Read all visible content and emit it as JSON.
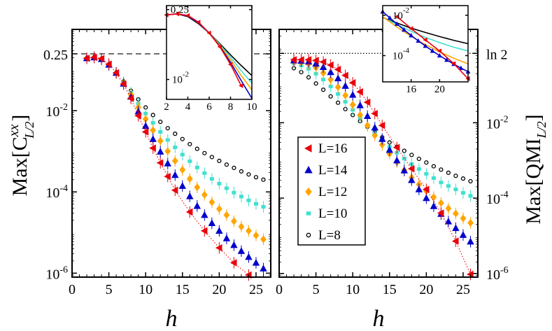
{
  "figure": {
    "description_free": true
  },
  "chart_data": [
    {
      "id": "left-panel",
      "type": "scatter",
      "title": "",
      "xlabel": "h",
      "ylabel_main": "Max[C",
      "ylabel_sup": "xx",
      "ylabel_sub": "L/2",
      "ylabel_close": "]",
      "yscale": "log",
      "xlim": [
        0,
        27
      ],
      "ylim": [
        8e-07,
        1.0
      ],
      "xticks": [
        0,
        5,
        10,
        15,
        20,
        25
      ],
      "xtick_labels": [
        "0",
        "5",
        "10",
        "15",
        "20",
        "25"
      ],
      "yticks": [
        1e-06,
        0.0001,
        0.01,
        0.25
      ],
      "ytick_labels": [
        {
          "base": "10",
          "exp": "-6"
        },
        {
          "base": "10",
          "exp": "-4"
        },
        {
          "base": "10",
          "exp": "-2"
        },
        {
          "base": "0.25",
          "exp": ""
        }
      ],
      "reference_line": {
        "y": 0.25,
        "style": "dashed"
      },
      "series": [
        {
          "name": "L=8",
          "color": "#000000",
          "marker": "circle",
          "x": [
            2,
            3,
            4,
            5,
            6,
            7,
            8,
            9,
            10,
            11,
            12,
            13,
            14,
            15,
            16,
            17,
            18,
            19,
            20,
            21,
            22,
            23,
            24,
            25,
            26
          ],
          "y": [
            0.195,
            0.205,
            0.18,
            0.13,
            0.085,
            0.052,
            0.031,
            0.019,
            0.012,
            0.0078,
            0.0053,
            0.0037,
            0.0027,
            0.002,
            0.0015,
            0.00115,
            0.0009,
            0.00072,
            0.00058,
            0.00047,
            0.00039,
            0.00032,
            0.00027,
            0.00023,
            0.0002
          ]
        },
        {
          "name": "L=10",
          "color": "#40e0d0",
          "marker": "square",
          "x": [
            2,
            3,
            4,
            5,
            6,
            7,
            8,
            9,
            10,
            11,
            12,
            13,
            14,
            15,
            16,
            17,
            18,
            19,
            20,
            21,
            22,
            23,
            24,
            25,
            26
          ],
          "y": [
            0.195,
            0.205,
            0.185,
            0.135,
            0.085,
            0.05,
            0.028,
            0.015,
            0.0085,
            0.005,
            0.003,
            0.0019,
            0.00125,
            0.00083,
            0.00057,
            0.0004,
            0.00029,
            0.00021,
            0.00016,
            0.000123,
            9.6e-05,
            7.7e-05,
            6.2e-05,
            5.1e-05,
            4.3e-05
          ]
        },
        {
          "name": "L=12",
          "color": "#ffa500",
          "marker": "diamond",
          "x": [
            2,
            3,
            4,
            5,
            6,
            7,
            8,
            9,
            10,
            11,
            12,
            13,
            14,
            15,
            16,
            17,
            18,
            19,
            20,
            21,
            22,
            23,
            24,
            25,
            26
          ],
          "y": [
            0.195,
            0.205,
            0.185,
            0.135,
            0.085,
            0.048,
            0.025,
            0.012,
            0.0062,
            0.0033,
            0.0018,
            0.001,
            0.00058,
            0.00035,
            0.00021,
            0.00013,
            8.5e-05,
            5.6e-05,
            3.8e-05,
            2.7e-05,
            1.9e-05,
            1.4e-05,
            1.1e-05,
            8.5e-06,
            6.8e-06
          ]
        },
        {
          "name": "L=14",
          "color": "#0000cd",
          "marker": "triangle-up",
          "x": [
            2,
            3,
            4,
            5,
            6,
            7,
            8,
            9,
            10,
            11,
            12,
            13,
            14,
            15,
            16,
            17,
            18,
            19,
            20,
            21,
            22,
            23,
            24,
            25,
            26
          ],
          "y": [
            0.195,
            0.205,
            0.185,
            0.135,
            0.085,
            0.046,
            0.022,
            0.0095,
            0.0042,
            0.002,
            0.00098,
            0.0005,
            0.00026,
            0.00014,
            7.8e-05,
            4.5e-05,
            2.7e-05,
            1.7e-05,
            1.1e-05,
            7.2e-06,
            4.9e-06,
            3.5e-06,
            2.5e-06,
            1.8e-06,
            1.3e-06
          ]
        },
        {
          "name": "L=16",
          "color": "#e8000b",
          "marker": "triangle-left",
          "fit_line": "dotted",
          "x": [
            2,
            3,
            4,
            5,
            6,
            7,
            8,
            9,
            10,
            11,
            12,
            13,
            14,
            16,
            18,
            20,
            22,
            24
          ],
          "y": [
            0.195,
            0.205,
            0.19,
            0.14,
            0.085,
            0.045,
            0.02,
            0.0075,
            0.003,
            0.0012,
            0.00052,
            0.00024,
            0.00011,
            3.2e-05,
            1.1e-05,
            4.2e-06,
            1.8e-06,
            9e-07
          ]
        }
      ]
    },
    {
      "id": "left-inset",
      "type": "line",
      "title": "",
      "yscale": "log",
      "xlim": [
        2,
        10
      ],
      "ylim": [
        0.004,
        0.3
      ],
      "xticks": [
        2,
        4,
        6,
        8,
        10
      ],
      "xtick_labels": [
        "2",
        "4",
        "6",
        "8",
        "10"
      ],
      "yticks": [
        0.01,
        0.25
      ],
      "ytick_labels": [
        {
          "base": "10",
          "exp": "-2"
        },
        {
          "base": "0.25",
          "exp": ""
        }
      ],
      "series": [
        {
          "name": "L=8",
          "color": "#000000",
          "x": [
            2,
            3,
            4,
            5,
            6,
            7,
            8,
            9,
            10
          ],
          "y": [
            0.195,
            0.205,
            0.18,
            0.13,
            0.085,
            0.052,
            0.031,
            0.019,
            0.012
          ]
        },
        {
          "name": "L=10",
          "color": "#40e0d0",
          "x": [
            2,
            3,
            4,
            5,
            6,
            7,
            8,
            9,
            10
          ],
          "y": [
            0.195,
            0.205,
            0.185,
            0.135,
            0.085,
            0.05,
            0.028,
            0.015,
            0.0085
          ]
        },
        {
          "name": "L=12",
          "color": "#ffa500",
          "x": [
            2,
            3,
            4,
            5,
            6,
            7,
            8,
            9,
            10
          ],
          "y": [
            0.195,
            0.205,
            0.185,
            0.135,
            0.085,
            0.048,
            0.025,
            0.012,
            0.0062
          ]
        },
        {
          "name": "L=14",
          "color": "#0000cd",
          "x": [
            2,
            3,
            4,
            5,
            6,
            7,
            8,
            9,
            10
          ],
          "y": [
            0.195,
            0.205,
            0.185,
            0.135,
            0.085,
            0.046,
            0.022,
            0.0095,
            0.0042
          ]
        },
        {
          "name": "L=16",
          "color": "#e8000b",
          "marker": "triangle-left",
          "x": [
            2,
            3,
            4,
            5,
            6,
            7,
            8,
            9,
            10
          ],
          "y": [
            0.195,
            0.205,
            0.19,
            0.14,
            0.085,
            0.045,
            0.02,
            0.0075,
            0.003
          ]
        }
      ]
    },
    {
      "id": "right-panel",
      "type": "scatter",
      "title": "",
      "xlabel": "h",
      "ylabel_main": "Max[QMI",
      "ylabel_sub": "L/2",
      "ylabel_close": "]",
      "yscale": "log",
      "xlim": [
        0,
        27
      ],
      "ylim": [
        8e-07,
        3.0
      ],
      "xticks": [
        0,
        5,
        10,
        15,
        20,
        25
      ],
      "xtick_labels": [
        "0",
        "5",
        "10",
        "15",
        "20",
        "25"
      ],
      "yticks": [
        1e-06,
        0.0001,
        0.01,
        0.693
      ],
      "ytick_labels": [
        {
          "base": "10",
          "exp": "-6"
        },
        {
          "base": "10",
          "exp": "-4"
        },
        {
          "base": "10",
          "exp": "-2"
        },
        {
          "base": "ln 2",
          "exp": ""
        }
      ],
      "reference_line": {
        "y": 0.693,
        "style": "dotted"
      },
      "series": [
        {
          "name": "L=8",
          "color": "#000000",
          "marker": "circle",
          "x": [
            2,
            3,
            4,
            5,
            6,
            7,
            8,
            9,
            10,
            11,
            12,
            13,
            14,
            15,
            16,
            17,
            18,
            19,
            20,
            21,
            22,
            23,
            24,
            25,
            26
          ],
          "y": [
            0.28,
            0.22,
            0.16,
            0.11,
            0.075,
            0.05,
            0.034,
            0.023,
            0.016,
            0.011,
            0.0078,
            0.0056,
            0.0041,
            0.003,
            0.0023,
            0.0018,
            0.0014,
            0.0011,
            0.00088,
            0.0007,
            0.00057,
            0.00047,
            0.00039,
            0.00033,
            0.00028
          ]
        },
        {
          "name": "L=10",
          "color": "#40e0d0",
          "marker": "square",
          "x": [
            2,
            3,
            4,
            5,
            6,
            7,
            8,
            9,
            10,
            11,
            12,
            13,
            14,
            15,
            16,
            17,
            18,
            19,
            20,
            21,
            22,
            23,
            24,
            25,
            26
          ],
          "y": [
            0.38,
            0.33,
            0.27,
            0.2,
            0.14,
            0.092,
            0.058,
            0.036,
            0.022,
            0.0135,
            0.0083,
            0.0052,
            0.0034,
            0.0023,
            0.0016,
            0.00112,
            0.0008,
            0.00059,
            0.00044,
            0.00034,
            0.00026,
            0.00021,
            0.00017,
            0.000138,
            0.000115
          ]
        },
        {
          "name": "L=12",
          "color": "#ffa500",
          "marker": "diamond",
          "x": [
            2,
            3,
            4,
            5,
            6,
            7,
            8,
            9,
            10,
            11,
            12,
            13,
            14,
            15,
            16,
            17,
            18,
            19,
            20,
            21,
            22,
            23,
            24,
            25,
            26
          ],
          "y": [
            0.42,
            0.4,
            0.36,
            0.29,
            0.21,
            0.14,
            0.088,
            0.053,
            0.03,
            0.016,
            0.0085,
            0.0046,
            0.0026,
            0.0015,
            0.0009,
            0.00055,
            0.00035,
            0.00023,
            0.000155,
            0.000106,
            7.4e-05,
            5.3e-05,
            3.9e-05,
            2.9e-05,
            2.2e-05
          ]
        },
        {
          "name": "L=14",
          "color": "#0000cd",
          "marker": "triangle-up",
          "x": [
            2,
            3,
            4,
            5,
            6,
            7,
            8,
            9,
            10,
            11,
            12,
            13,
            14,
            15,
            16,
            17,
            18,
            19,
            20,
            21,
            22,
            23,
            24,
            25,
            26
          ],
          "y": [
            0.45,
            0.44,
            0.42,
            0.37,
            0.3,
            0.22,
            0.15,
            0.095,
            0.055,
            0.029,
            0.015,
            0.0074,
            0.0037,
            0.0019,
            0.001,
            0.00054,
            0.0003,
            0.00017,
            0.0001,
            6.1e-05,
            3.8e-05,
            2.4e-05,
            1.6e-05,
            1.05e-05,
            7e-06
          ]
        },
        {
          "name": "L=16",
          "color": "#e8000b",
          "marker": "triangle-left",
          "fit_line": "dotted",
          "x": [
            2,
            3,
            4,
            5,
            6,
            7,
            8,
            9,
            10,
            11,
            12,
            13,
            14,
            16,
            18,
            20,
            22,
            24,
            26
          ],
          "y": [
            0.47,
            0.47,
            0.47,
            0.45,
            0.41,
            0.34,
            0.26,
            0.18,
            0.115,
            0.066,
            0.035,
            0.0175,
            0.0085,
            0.0022,
            0.0006,
            0.00017,
            4e-05,
            7.2e-06,
            9.5e-07
          ]
        }
      ]
    },
    {
      "id": "right-inset",
      "type": "line",
      "title": "",
      "yscale": "log",
      "xlim": [
        12,
        24
      ],
      "ylim": [
        5e-06,
        0.03
      ],
      "xticks": [
        16,
        20
      ],
      "xtick_labels": [
        "16",
        "20"
      ],
      "yticks": [
        0.01,
        0.0001
      ],
      "ytick_labels": [
        {
          "base": "10",
          "exp": "-2"
        },
        {
          "base": "10",
          "exp": "-4"
        }
      ],
      "series": [
        {
          "name": "L=8",
          "color": "#000000",
          "x": [
            12,
            14,
            16,
            18,
            20,
            22,
            24
          ],
          "y": [
            0.0078,
            0.0041,
            0.0023,
            0.0014,
            0.00088,
            0.00057,
            0.00039
          ]
        },
        {
          "name": "L=10",
          "color": "#40e0d0",
          "x": [
            12,
            14,
            16,
            18,
            20,
            22,
            24
          ],
          "y": [
            0.0083,
            0.0034,
            0.0016,
            0.0008,
            0.00044,
            0.00026,
            0.00017
          ]
        },
        {
          "name": "L=12",
          "color": "#ffa500",
          "x": [
            12,
            14,
            16,
            18,
            20,
            22,
            24
          ],
          "y": [
            0.0085,
            0.0026,
            0.0009,
            0.00035,
            0.000155,
            7.4e-05,
            3.9e-05
          ]
        },
        {
          "name": "L=14",
          "color": "#0000cd",
          "marker": "triangle-up",
          "x": [
            12,
            13,
            14,
            15,
            16,
            17,
            18,
            19,
            20,
            21,
            22,
            23,
            24
          ],
          "y": [
            0.015,
            0.0074,
            0.0037,
            0.0019,
            0.001,
            0.00054,
            0.0003,
            0.00017,
            0.0001,
            6.1e-05,
            3.8e-05,
            2.4e-05,
            1.6e-05
          ]
        },
        {
          "name": "L=16",
          "color": "#e8000b",
          "marker": "triangle-left",
          "x": [
            12,
            14,
            16,
            18,
            20,
            22,
            24
          ],
          "y": [
            0.035,
            0.0085,
            0.0022,
            0.0006,
            0.00017,
            4e-05,
            7.2e-06
          ]
        }
      ]
    }
  ],
  "legend": {
    "placement": "center-right panel",
    "entries": [
      {
        "label": "L=16",
        "color": "#e8000b",
        "marker": "triangle-left"
      },
      {
        "label": "L=14",
        "color": "#0000cd",
        "marker": "triangle-up"
      },
      {
        "label": "L=12",
        "color": "#ffa500",
        "marker": "diamond"
      },
      {
        "label": "L=10",
        "color": "#40e0d0",
        "marker": "square"
      },
      {
        "label": "L=8",
        "color": "#000000",
        "marker": "circle"
      }
    ]
  }
}
